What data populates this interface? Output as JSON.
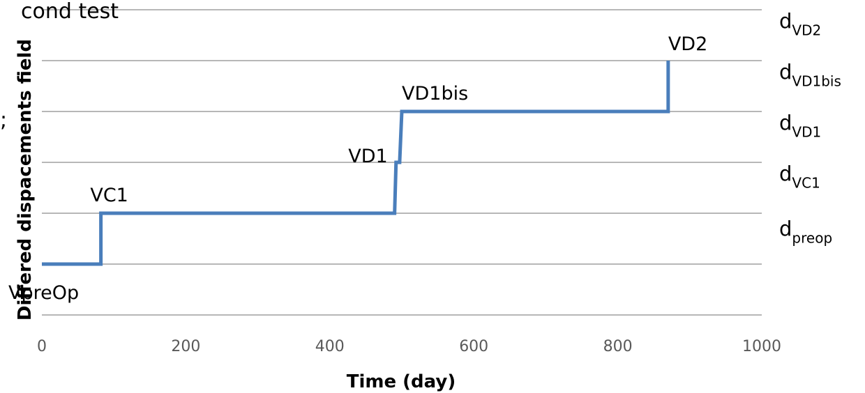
{
  "chart_data": {
    "type": "line",
    "title_fragment": "cond test",
    "left_mark": ";",
    "xlabel": "Time (day)",
    "ylabel": "Differed dispacements field",
    "xlim": [
      0,
      1000
    ],
    "x_ticks": [
      "0",
      "200",
      "400",
      "600",
      "800",
      "1000"
    ],
    "ylim": [
      -1,
      5
    ],
    "grid": true,
    "series": [
      {
        "color": "#4a7ebb",
        "points": [
          [
            0,
            0
          ],
          [
            82,
            0
          ],
          [
            82,
            1
          ],
          [
            490,
            1
          ],
          [
            492,
            2
          ],
          [
            497,
            2
          ],
          [
            500,
            3
          ],
          [
            870,
            3
          ],
          [
            870,
            4
          ]
        ]
      }
    ],
    "point_labels": [
      {
        "text": "VpreOp",
        "x": 0,
        "y": 0
      },
      {
        "text": "VC1",
        "x": 82,
        "y": 1
      },
      {
        "text": "VD1",
        "x": 492,
        "y": 2
      },
      {
        "text": "VD1bis",
        "x": 500,
        "y": 3
      },
      {
        "text": "VD2",
        "x": 870,
        "y": 4
      }
    ],
    "right_labels": [
      {
        "main": "d",
        "sub": "VD2"
      },
      {
        "main": "d",
        "sub": "VD1bis"
      },
      {
        "main": "d",
        "sub": "VD1"
      },
      {
        "main": "d",
        "sub": "VC1"
      },
      {
        "main": "d",
        "sub": "preop"
      }
    ]
  }
}
